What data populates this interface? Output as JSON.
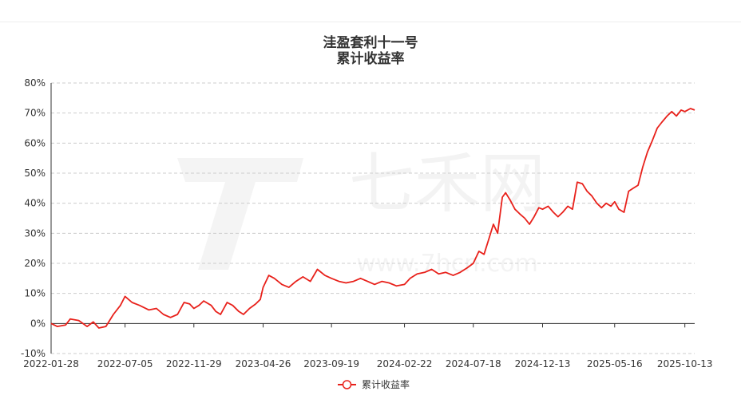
{
  "chart_data": {
    "type": "line",
    "title": "洼盈套利十一号",
    "subtitle": "累计收益率",
    "series": [
      {
        "name": "累计收益率",
        "color": "#e8211b",
        "points": [
          [
            "2022-01-28",
            0
          ],
          [
            "2022-02-10",
            -1
          ],
          [
            "2022-02-28",
            -0.5
          ],
          [
            "2022-03-10",
            1.5
          ],
          [
            "2022-03-28",
            1
          ],
          [
            "2022-04-15",
            -1
          ],
          [
            "2022-04-28",
            0.5
          ],
          [
            "2022-05-10",
            -1.5
          ],
          [
            "2022-05-25",
            -1
          ],
          [
            "2022-06-10",
            3
          ],
          [
            "2022-06-25",
            6
          ],
          [
            "2022-07-05",
            9
          ],
          [
            "2022-07-20",
            7
          ],
          [
            "2022-08-05",
            6
          ],
          [
            "2022-08-25",
            4.5
          ],
          [
            "2022-09-10",
            5
          ],
          [
            "2022-09-25",
            3
          ],
          [
            "2022-10-10",
            2
          ],
          [
            "2022-10-25",
            3
          ],
          [
            "2022-11-08",
            7
          ],
          [
            "2022-11-20",
            6.5
          ],
          [
            "2022-11-29",
            5
          ],
          [
            "2022-12-10",
            6
          ],
          [
            "2022-12-20",
            7.5
          ],
          [
            "2023-01-05",
            6
          ],
          [
            "2023-01-15",
            4
          ],
          [
            "2023-01-25",
            3
          ],
          [
            "2023-02-08",
            7
          ],
          [
            "2023-02-20",
            6
          ],
          [
            "2023-03-05",
            4
          ],
          [
            "2023-03-15",
            3
          ],
          [
            "2023-03-28",
            5
          ],
          [
            "2023-04-10",
            6.5
          ],
          [
            "2023-04-20",
            8
          ],
          [
            "2023-04-26",
            12
          ],
          [
            "2023-05-08",
            16
          ],
          [
            "2023-05-20",
            15
          ],
          [
            "2023-06-05",
            13
          ],
          [
            "2023-06-20",
            12
          ],
          [
            "2023-07-05",
            14
          ],
          [
            "2023-07-20",
            15.5
          ],
          [
            "2023-08-05",
            14
          ],
          [
            "2023-08-20",
            18
          ],
          [
            "2023-09-05",
            16
          ],
          [
            "2023-09-19",
            15
          ],
          [
            "2023-10-05",
            14
          ],
          [
            "2023-10-20",
            13.5
          ],
          [
            "2023-11-05",
            14
          ],
          [
            "2023-11-20",
            15
          ],
          [
            "2023-12-05",
            14
          ],
          [
            "2023-12-20",
            13
          ],
          [
            "2024-01-05",
            14
          ],
          [
            "2024-01-20",
            13.5
          ],
          [
            "2024-02-05",
            12.5
          ],
          [
            "2024-02-22",
            13
          ],
          [
            "2024-03-05",
            15
          ],
          [
            "2024-03-20",
            16.5
          ],
          [
            "2024-04-05",
            17
          ],
          [
            "2024-04-20",
            18
          ],
          [
            "2024-05-05",
            16.5
          ],
          [
            "2024-05-20",
            17
          ],
          [
            "2024-06-05",
            16
          ],
          [
            "2024-06-20",
            17
          ],
          [
            "2024-07-05",
            18.5
          ],
          [
            "2024-07-18",
            20
          ],
          [
            "2024-07-30",
            24
          ],
          [
            "2024-08-10",
            23
          ],
          [
            "2024-08-20",
            28
          ],
          [
            "2024-08-30",
            33
          ],
          [
            "2024-09-08",
            30
          ],
          [
            "2024-09-18",
            42
          ],
          [
            "2024-09-25",
            43.5
          ],
          [
            "2024-10-05",
            41
          ],
          [
            "2024-10-15",
            38
          ],
          [
            "2024-10-25",
            36.5
          ],
          [
            "2024-11-05",
            35
          ],
          [
            "2024-11-15",
            33
          ],
          [
            "2024-11-25",
            35.5
          ],
          [
            "2024-12-05",
            38.5
          ],
          [
            "2024-12-13",
            38
          ],
          [
            "2024-12-25",
            39
          ],
          [
            "2025-01-05",
            37
          ],
          [
            "2025-01-15",
            35.5
          ],
          [
            "2025-01-25",
            37
          ],
          [
            "2025-02-05",
            39
          ],
          [
            "2025-02-15",
            38
          ],
          [
            "2025-02-25",
            47
          ],
          [
            "2025-03-08",
            46.5
          ],
          [
            "2025-03-18",
            44
          ],
          [
            "2025-03-28",
            42.5
          ],
          [
            "2025-04-08",
            40
          ],
          [
            "2025-04-18",
            38.5
          ],
          [
            "2025-04-28",
            40
          ],
          [
            "2025-05-08",
            39
          ],
          [
            "2025-05-16",
            40.5
          ],
          [
            "2025-05-25",
            38
          ],
          [
            "2025-06-05",
            37
          ],
          [
            "2025-06-15",
            44
          ],
          [
            "2025-06-25",
            45
          ],
          [
            "2025-07-05",
            46
          ],
          [
            "2025-07-15",
            52
          ],
          [
            "2025-07-25",
            57
          ],
          [
            "2025-08-05",
            61
          ],
          [
            "2025-08-15",
            65
          ],
          [
            "2025-08-25",
            67
          ],
          [
            "2025-09-05",
            69
          ],
          [
            "2025-09-15",
            70.5
          ],
          [
            "2025-09-25",
            69
          ],
          [
            "2025-10-05",
            71
          ],
          [
            "2025-10-13",
            70.5
          ],
          [
            "2025-10-25",
            71.5
          ],
          [
            "2025-11-03",
            71
          ]
        ]
      }
    ],
    "x_ticks": [
      "2022-01-28",
      "2022-07-05",
      "2022-11-29",
      "2023-04-26",
      "2023-09-19",
      "2024-02-22",
      "2024-07-18",
      "2024-12-13",
      "2025-05-16",
      "2025-10-13"
    ],
    "x_range": [
      "2022-01-28",
      "2025-11-03"
    ],
    "y_ticks": [
      -10,
      0,
      10,
      20,
      30,
      40,
      50,
      60,
      70,
      80
    ],
    "y_tick_labels": [
      "-10%",
      "0%",
      "10%",
      "20%",
      "30%",
      "40%",
      "50%",
      "60%",
      "70%",
      "80%"
    ],
    "ylim": [
      -10,
      80
    ],
    "grid": "horizontal dashed",
    "legend_position": "bottom-center"
  },
  "watermark": {
    "text": "七禾网",
    "url": "www.7hcn.com"
  }
}
